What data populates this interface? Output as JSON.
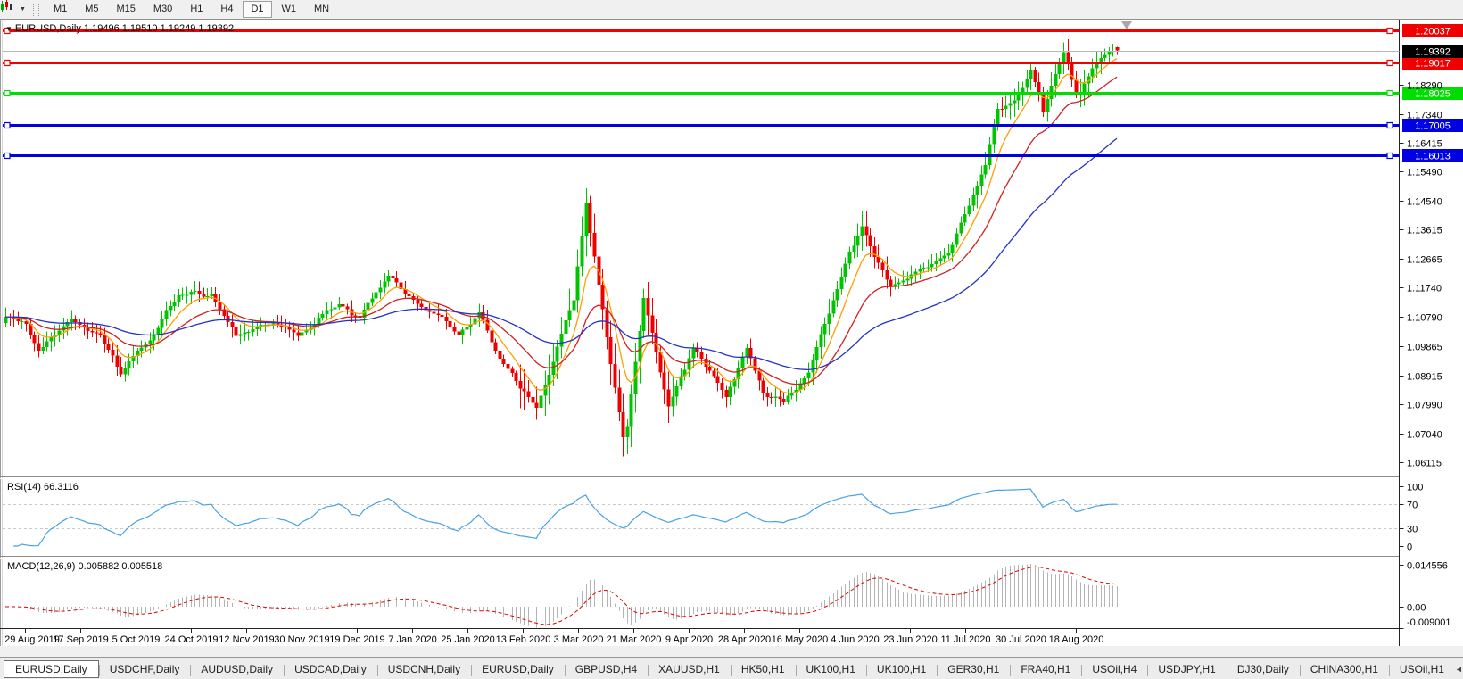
{
  "toolbar": {
    "timeframes": [
      "M1",
      "M5",
      "M15",
      "M30",
      "H1",
      "H4",
      "D1",
      "W1",
      "MN"
    ],
    "active_timeframe": "D1"
  },
  "chart": {
    "symbol": "EURUSD,Daily",
    "title": "EURUSD,Daily 1.19496 1.19510 1.19249 1.19392",
    "open": "1.19496",
    "high": "1.19510",
    "low": "1.19249",
    "close": "1.19392",
    "current_price": 1.19392,
    "current_price_label": "1.19392",
    "hlines": [
      {
        "price": 1.20037,
        "label": "1.20037",
        "color": "#f00000"
      },
      {
        "price": 1.19017,
        "label": "1.19017",
        "color": "#f00000"
      },
      {
        "price": 1.18025,
        "label": "1.18025",
        "color": "#00dd00"
      },
      {
        "price": 1.17005,
        "label": "1.17005",
        "color": "#0000e0"
      },
      {
        "price": 1.16013,
        "label": "1.16013",
        "color": "#0000e0"
      }
    ],
    "y_ticks": [
      "1.18290",
      "1.17340",
      "1.16415",
      "1.15490",
      "1.14540",
      "1.13615",
      "1.12665",
      "1.11740",
      "1.10790",
      "1.09865",
      "1.08915",
      "1.07990",
      "1.07040",
      "1.06115"
    ],
    "x_ticks": [
      "29 Aug 2019",
      "17 Sep 2019",
      "5 Oct 2019",
      "24 Oct 2019",
      "12 Nov 2019",
      "30 Nov 2019",
      "19 Dec 2019",
      "7 Jan 2020",
      "25 Jan 2020",
      "13 Feb 2020",
      "3 Mar 2020",
      "21 Mar 2020",
      "9 Apr 2020",
      "28 Apr 2020",
      "16 May 2020",
      "4 Jun 2020",
      "23 Jun 2020",
      "11 Jul 2020",
      "30 Jul 2020",
      "18 Aug 2020"
    ]
  },
  "rsi": {
    "label": "RSI(14) 66.3116",
    "period": 14,
    "current": 66.3116,
    "y_ticks": [
      "100",
      "70",
      "30",
      "0"
    ],
    "levels": [
      70,
      30
    ]
  },
  "macd": {
    "label": "MACD(12,26,9) 0.005882 0.005518",
    "macd_value": 0.005882,
    "signal_value": 0.005518,
    "y_ticks": [
      "0.014556",
      "0.00",
      "-0.009001"
    ]
  },
  "tabbar": {
    "tabs": [
      "EURUSD,Daily",
      "USDCHF,Daily",
      "AUDUSD,Daily",
      "USDCAD,Daily",
      "USDCNH,Daily",
      "EURUSD,Daily",
      "GBPUSD,H4",
      "XAUUSD,H1",
      "HK50,H1",
      "UK100,H1",
      "UK100,H1",
      "GER30,H1",
      "FRA40,H1",
      "USOil,H4",
      "USDJPY,H1",
      "DJ30,Daily",
      "CHINA300,H1",
      "USOil,H1"
    ],
    "active_index": 0,
    "left_arrow": "◄",
    "right_arrow": "►"
  },
  "chart_data": {
    "type": "candlestick",
    "symbol": "EURUSD",
    "timeframe": "Daily",
    "title": "EURUSD,Daily 1.19496 1.19510 1.19249 1.19392",
    "x_range": [
      "29 Aug 2019",
      "2 Sep 2020"
    ],
    "y_range": [
      1.0568,
      1.2036
    ],
    "bars_total": 271,
    "last_bar": {
      "open": 1.19496,
      "high": 1.1951,
      "low": 1.19249,
      "close": 1.19392
    },
    "close_anchors": [
      [
        0,
        1.108
      ],
      [
        5,
        1.1057
      ],
      [
        8,
        1.0971
      ],
      [
        16,
        1.1073
      ],
      [
        23,
        1.1021
      ],
      [
        28,
        1.0895
      ],
      [
        35,
        1.1004
      ],
      [
        42,
        1.115
      ],
      [
        50,
        1.1152
      ],
      [
        56,
        1.1018
      ],
      [
        65,
        1.1058
      ],
      [
        71,
        1.1018
      ],
      [
        81,
        1.1121
      ],
      [
        86,
        1.1078
      ],
      [
        93,
        1.1213
      ],
      [
        100,
        1.1122
      ],
      [
        110,
        1.1023
      ],
      [
        115,
        1.1094
      ],
      [
        120,
        1.0945
      ],
      [
        129,
        1.0786
      ],
      [
        135,
        1.1026
      ],
      [
        138,
        1.1134
      ],
      [
        141,
        1.1447
      ],
      [
        144,
        1.1184
      ],
      [
        150,
        1.0692
      ],
      [
        151,
        1.0724
      ],
      [
        155,
        1.1141
      ],
      [
        161,
        1.0791
      ],
      [
        167,
        1.098
      ],
      [
        175,
        1.0821
      ],
      [
        180,
        1.098
      ],
      [
        184,
        1.0834
      ],
      [
        189,
        1.0805
      ],
      [
        195,
        1.09
      ],
      [
        197,
        1.0982
      ],
      [
        201,
        1.1134
      ],
      [
        205,
        1.1291
      ],
      [
        208,
        1.1373
      ],
      [
        215,
        1.1176
      ],
      [
        222,
        1.1234
      ],
      [
        229,
        1.1284
      ],
      [
        233,
        1.1411
      ],
      [
        238,
        1.157
      ],
      [
        241,
        1.1751
      ],
      [
        245,
        1.1778
      ],
      [
        249,
        1.1877
      ],
      [
        252,
        1.174
      ],
      [
        257,
        1.1934
      ],
      [
        260,
        1.1797
      ],
      [
        262,
        1.1833
      ],
      [
        265,
        1.1903
      ],
      [
        269,
        1.1939
      ],
      [
        270,
        1.19392
      ]
    ],
    "ohlc_overrides": {
      "141": {
        "high": 1.1495
      },
      "151": {
        "low": 1.0636
      },
      "208": {
        "high": 1.1422
      },
      "257": {
        "high": 1.1966
      },
      "269": {
        "high": 1.1962
      },
      "270": {
        "open": 1.19496,
        "high": 1.1951,
        "low": 1.19249,
        "close": 1.19392
      }
    },
    "volatility_zones": [
      [
        125,
        162,
        2.1
      ],
      [
        196,
        214,
        1.5
      ],
      [
        236,
        271,
        1.35
      ]
    ],
    "moving_averages": [
      {
        "name": "ma-fast",
        "type": "ema",
        "period": 8,
        "color": "#ff9e00"
      },
      {
        "name": "ma-mid",
        "type": "ema",
        "period": 21,
        "color": "#d02020"
      },
      {
        "name": "ma-slow",
        "type": "ema",
        "period": 55,
        "color": "#2432c8"
      }
    ],
    "horizontal_levels": [
      1.20037,
      1.19017,
      1.18025,
      1.17005,
      1.16013
    ],
    "indicators": [
      {
        "name": "RSI",
        "period": 14,
        "current": 66.3116,
        "range": [
          0,
          100
        ],
        "levels": [
          70,
          30
        ]
      },
      {
        "name": "MACD",
        "params": [
          12,
          26,
          9
        ],
        "macd": 0.005882,
        "signal": 0.005518,
        "axis_max": 0.014556,
        "axis_min": -0.009001
      }
    ]
  }
}
